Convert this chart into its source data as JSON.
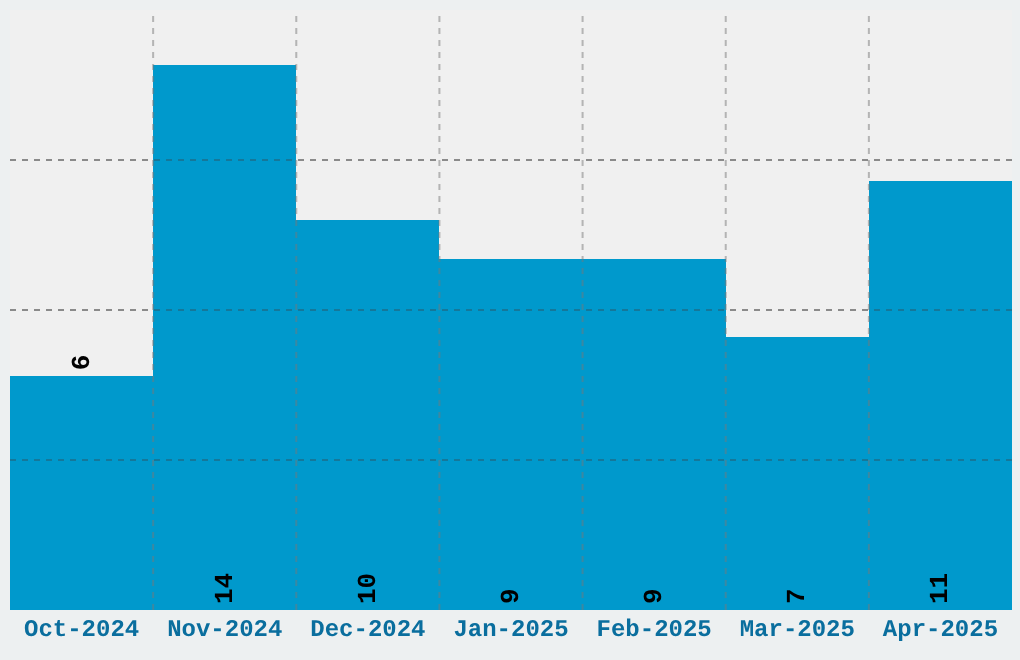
{
  "chart_data": {
    "type": "bar",
    "categories": [
      "Oct-2024",
      "Nov-2024",
      "Dec-2024",
      "Jan-2025",
      "Feb-2025",
      "Mar-2025",
      "Apr-2025"
    ],
    "values": [
      6,
      14,
      10,
      9,
      9,
      7,
      11
    ],
    "color": "#0099cc",
    "ylim": [
      0,
      15.4
    ],
    "yticks": [
      {
        "value": 3.85,
        "label": null
      },
      {
        "value": 7.7,
        "label": null
      },
      {
        "value": 11.55,
        "label": null
      }
    ],
    "grid": true,
    "data_labels": true,
    "tick_labels": "x"
  }
}
